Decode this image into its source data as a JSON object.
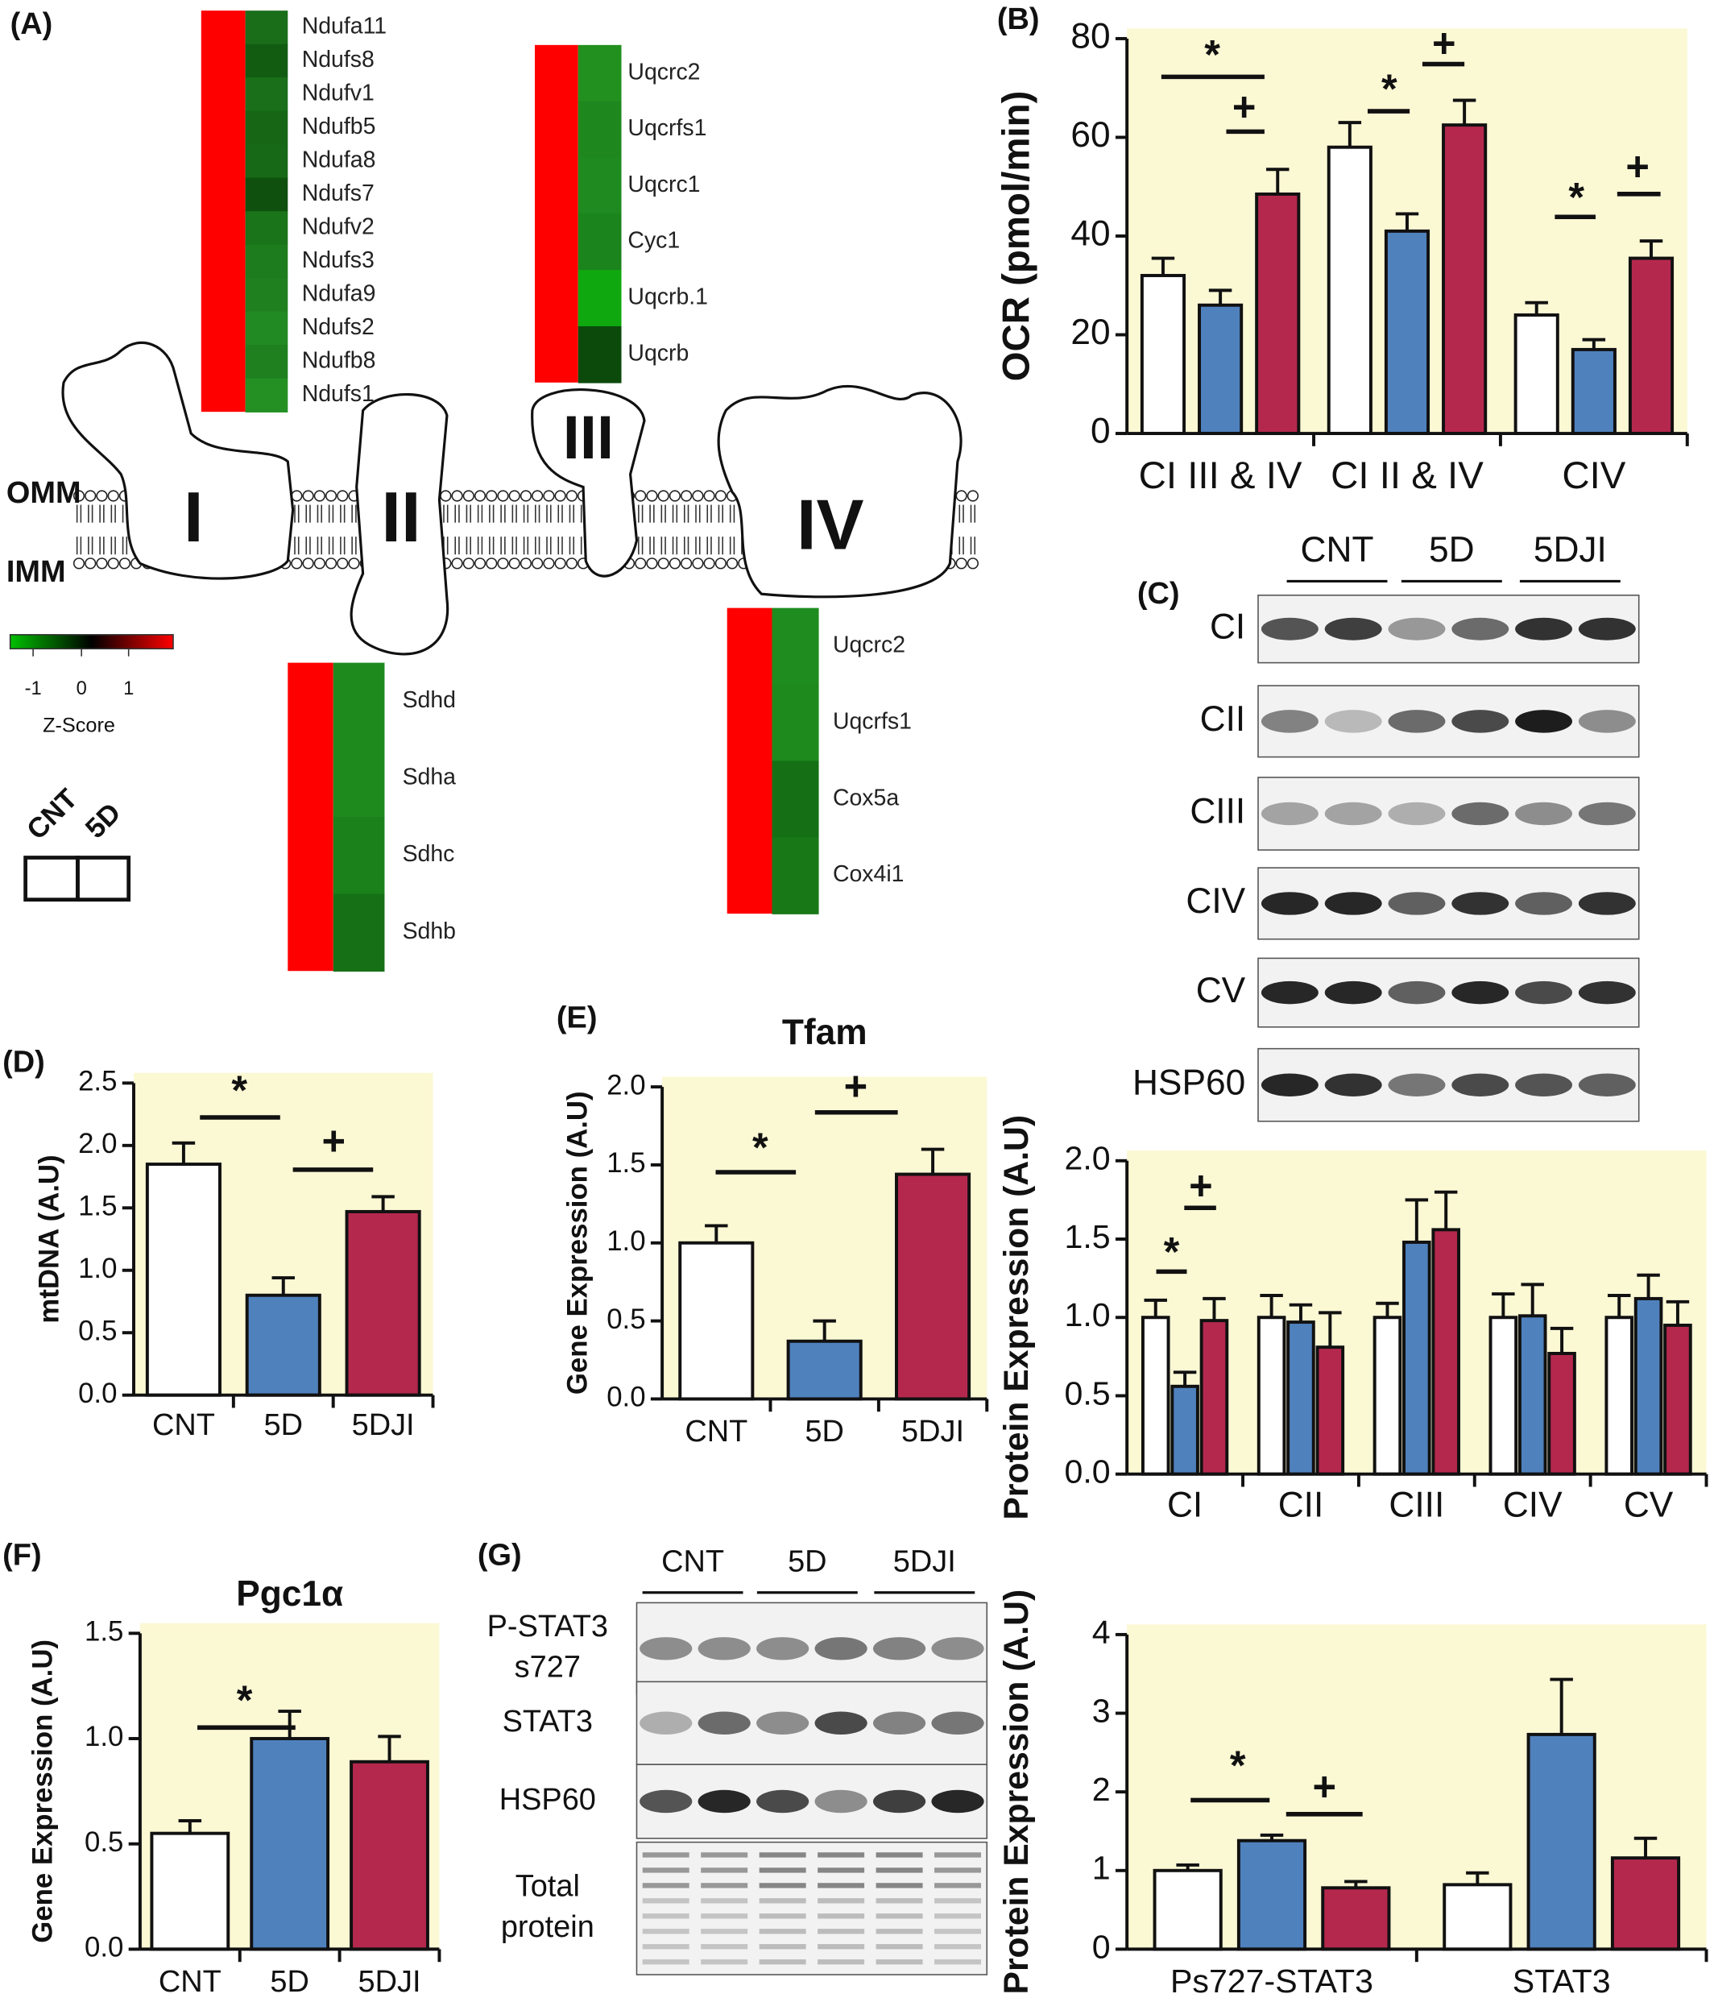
{
  "panel_labels": [
    "(A)",
    "(B)",
    "(C)",
    "(D)",
    "(E)",
    "(F)",
    "(G)"
  ],
  "diagram": {
    "membrane_labels": [
      "OMM",
      "IMM"
    ],
    "complexes": [
      "I",
      "II",
      "III",
      "IV"
    ]
  },
  "heatmaps": [
    {
      "genes": [
        "Ndufa11",
        "Ndufs8",
        "Ndufv1",
        "Ndufb5",
        "Ndufa8",
        "Ndufs7",
        "Ndufv2",
        "Ndufs3",
        "Ndufa9",
        "Ndufs2",
        "Ndufb8",
        "Ndufs1"
      ],
      "cell_colors": [
        "#ff0000",
        "#1a6e1a",
        "#125c12",
        "#1a701a",
        "#166616",
        "#176817",
        "#0f500f",
        "#1a741a",
        "#1d7c1d",
        "#1f801f",
        "#228a22",
        "#1e801e",
        "#249024"
      ]
    },
    {
      "genes": [
        "Uqcrc2",
        "Uqcrfs1",
        "Uqcrc1",
        "Cyc1",
        "Uqcrb.1",
        "Uqcrb"
      ],
      "cell_colors": [
        "#ff0000",
        "#22901f",
        "#1e881e",
        "#1f8a1f",
        "#1c841c",
        "#0fa80f",
        "#0b4a0b"
      ]
    },
    {
      "genes": [
        "Sdhd",
        "Sdha",
        "Sdhc",
        "Sdhb"
      ],
      "cell_colors": [
        "#ff0000",
        "#1e8a1e",
        "#1e8a1e",
        "#1b821b",
        "#167016"
      ]
    },
    {
      "genes": [
        "Uqcrc2",
        "Uqcrfs1",
        "Cox5a",
        "Cox4i1"
      ],
      "cell_colors": [
        "#ff0000",
        "#1e8c1e",
        "#1e8a1e",
        "#157015",
        "#187818"
      ]
    }
  ],
  "zscore_legend": {
    "title": "Z-Score",
    "ticks": [
      "-1",
      "0",
      "1"
    ]
  },
  "sample_legend": [
    "CNT",
    "5D"
  ],
  "blots": [
    {
      "groups": [
        "CNT",
        "5D",
        "5DJI"
      ],
      "rows": [
        [
          "CI"
        ],
        [
          "CII"
        ],
        [
          "CIII"
        ],
        [
          "CIV"
        ],
        [
          "CV"
        ],
        [
          "HSP60"
        ]
      ]
    },
    {
      "groups": [
        "CNT",
        "5D",
        "5DJI"
      ],
      "rows": [
        [
          "P-STAT3",
          "s727"
        ],
        [
          "STAT3"
        ],
        [
          "HSP60"
        ],
        [
          "Total",
          "protein"
        ]
      ]
    }
  ],
  "chart_data": [
    {
      "type": "bar",
      "y_label": "OCR (pmol/min)",
      "categories": [
        "CI III & IV",
        "CI II & IV",
        "CIV"
      ],
      "series": [
        {
          "color": "#ffffff",
          "values": [
            32,
            58,
            24
          ],
          "errors": [
            3.5,
            5,
            2.5
          ]
        },
        {
          "color": "#4f81bd",
          "values": [
            26,
            41,
            17
          ],
          "errors": [
            3,
            3.5,
            2
          ]
        },
        {
          "color": "#b5284e",
          "values": [
            48.5,
            62.5,
            35.5
          ],
          "errors": [
            5,
            5,
            3.5
          ]
        }
      ],
      "ylim": [
        0,
        80
      ],
      "yticks": [
        0,
        20,
        40,
        60,
        80
      ],
      "annotations": [
        "*",
        "+",
        "*",
        "+",
        "*",
        "+"
      ]
    },
    {
      "type": "bar",
      "y_label": "Protein Expression (A.U)",
      "categories": [
        "CI",
        "CII",
        "CIII",
        "CIV",
        "CV"
      ],
      "series": [
        {
          "color": "#ffffff",
          "values": [
            1.0,
            1.0,
            1.0,
            1.0,
            1.0
          ],
          "errors": [
            0.11,
            0.14,
            0.09,
            0.15,
            0.14
          ]
        },
        {
          "color": "#4f81bd",
          "values": [
            0.56,
            0.97,
            1.48,
            1.01,
            1.12
          ],
          "errors": [
            0.09,
            0.11,
            0.27,
            0.2,
            0.15
          ]
        },
        {
          "color": "#b5284e",
          "values": [
            0.98,
            0.81,
            1.56,
            0.77,
            0.95
          ],
          "errors": [
            0.14,
            0.22,
            0.24,
            0.16,
            0.15
          ]
        }
      ],
      "ylim": [
        0,
        2.0
      ],
      "yticks": [
        {
          "value": 0,
          "label": "0.0"
        },
        0.5,
        {
          "value": 1,
          "label": "1.0"
        },
        1.5,
        {
          "value": 2,
          "label": "2.0"
        }
      ],
      "annotations": [
        "*",
        "+"
      ]
    },
    {
      "type": "bar",
      "y_label": "mtDNA (A.U)",
      "categories": [
        "CNT",
        "5D",
        "5DJI"
      ],
      "values": [
        1.85,
        0.8,
        1.47
      ],
      "errors": [
        0.17,
        0.14,
        0.12
      ],
      "colors": [
        "#ffffff",
        "#4f81bd",
        "#b5284e"
      ],
      "ylim": [
        0,
        2.5
      ],
      "yticks": [
        {
          "value": 0,
          "label": "0.0"
        },
        0.5,
        {
          "value": 1,
          "label": "1.0"
        },
        1.5,
        {
          "value": 2,
          "label": "2.0"
        },
        2.5
      ],
      "annotations": [
        "*",
        "+"
      ]
    },
    {
      "type": "bar",
      "title": "Tfam",
      "y_label": "Gene Expression (A.U)",
      "categories": [
        "CNT",
        "5D",
        "5DJI"
      ],
      "values": [
        1.0,
        0.37,
        1.44
      ],
      "errors": [
        0.11,
        0.13,
        0.16
      ],
      "colors": [
        "#ffffff",
        "#4f81bd",
        "#b5284e"
      ],
      "ylim": [
        0,
        2.0
      ],
      "yticks": [
        {
          "value": 0,
          "label": "0.0"
        },
        0.5,
        {
          "value": 1,
          "label": "1.0"
        },
        1.5,
        {
          "value": 2,
          "label": "2.0"
        }
      ],
      "annotations": [
        "*",
        "+"
      ]
    },
    {
      "type": "bar",
      "title": "Pgc1α",
      "y_label": "Gene Expression (A.U)",
      "categories": [
        "CNT",
        "5D",
        "5DJI"
      ],
      "values": [
        0.55,
        1.0,
        0.89
      ],
      "errors": [
        0.06,
        0.13,
        0.12
      ],
      "colors": [
        "#ffffff",
        "#4f81bd",
        "#b5284e"
      ],
      "ylim": [
        0,
        1.5
      ],
      "yticks": [
        {
          "value": 0,
          "label": "0.0"
        },
        0.5,
        {
          "value": 1,
          "label": "1.0"
        },
        1.5
      ],
      "annotations": [
        "*"
      ]
    },
    {
      "type": "bar",
      "y_label": "Protein Expression (A.U)",
      "categories": [
        "Ps727-STAT3",
        "STAT3"
      ],
      "series": [
        {
          "color": "#ffffff",
          "values": [
            1.0,
            0.82
          ],
          "errors": [
            0.07,
            0.15
          ]
        },
        {
          "color": "#4f81bd",
          "values": [
            1.38,
            2.73
          ],
          "errors": [
            0.07,
            0.7
          ]
        },
        {
          "color": "#b5284e",
          "values": [
            0.78,
            1.16
          ],
          "errors": [
            0.08,
            0.25
          ]
        }
      ],
      "ylim": [
        0,
        4
      ],
      "yticks": [
        0,
        1,
        2,
        3,
        4
      ],
      "annotations": [
        "*",
        "+"
      ]
    }
  ]
}
